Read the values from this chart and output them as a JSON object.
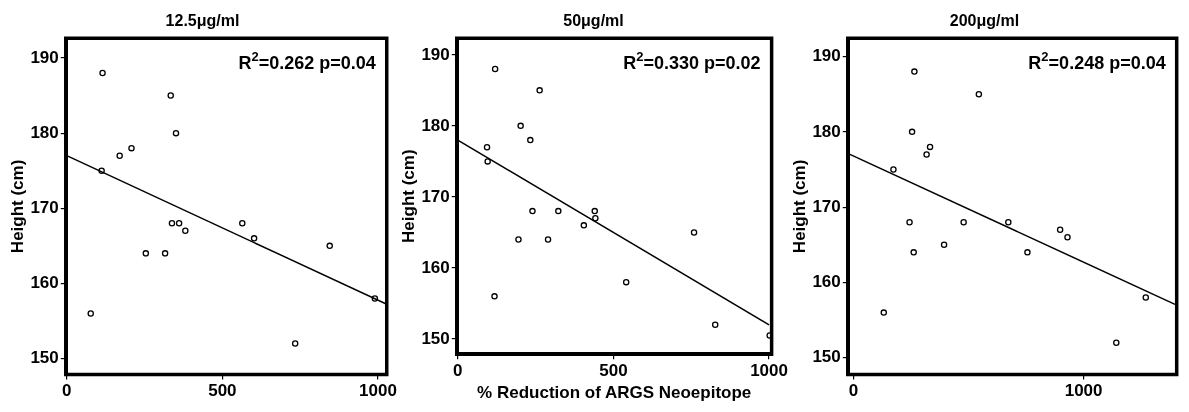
{
  "chart_data": [
    {
      "type": "scatter",
      "title": "12.5μg/ml",
      "ylabel": "Height (cm)",
      "annotations": [
        "R$^{2}$=0.262 p=0.04"
      ],
      "xlim": [
        0,
        1025
      ],
      "xticks": [
        0,
        500,
        1000
      ],
      "ylim": [
        148,
        192.5
      ],
      "yticks": [
        150,
        160,
        170,
        180,
        190
      ],
      "grid": false,
      "legend": false,
      "series": [
        {
          "type": "scatter",
          "marker": "circle",
          "color": "#000000",
          "x": [
            77,
            115,
            112,
            170,
            208,
            254,
            316,
            334,
            351,
            338,
            361,
            381,
            564,
            602,
            845,
            734,
            990
          ],
          "values": [
            156,
            188,
            175,
            177,
            178,
            164,
            164,
            185,
            180,
            168,
            168,
            167,
            168,
            166,
            165,
            152,
            158
          ]
        },
        {
          "type": "line",
          "marker": "none",
          "line_style": "solid",
          "color": "#000000",
          "x": [
            0,
            1025
          ],
          "values": [
            177,
            157.3
          ]
        }
      ]
    },
    {
      "type": "scatter",
      "title": "50μg/ml",
      "xlabel": "% Reduction of ARGS Neoepitope",
      "ylabel": "Height (cm)",
      "annotations": [
        "R$^{2}$=0.330 p=0.02"
      ],
      "xlim": [
        0,
        1005
      ],
      "xticks": [
        0,
        500,
        1000
      ],
      "ylim": [
        148,
        192.2
      ],
      "yticks": [
        150,
        160,
        170,
        180,
        190
      ],
      "grid": false,
      "legend": false,
      "series": [
        {
          "type": "scatter",
          "marker": "circle",
          "color": "#000000",
          "x": [
            120,
            263,
            202,
            233,
            94,
            96,
            240,
            323,
            440,
            442,
            405,
            195,
            290,
            118,
            541,
            759,
            827,
            1002
          ],
          "values": [
            188,
            185,
            180,
            178,
            177,
            175,
            168,
            168,
            168,
            167,
            166,
            164,
            164,
            156,
            158,
            165,
            152,
            150.5
          ]
        },
        {
          "type": "line",
          "marker": "none",
          "line_style": "solid",
          "color": "#000000",
          "x": [
            0,
            1000
          ],
          "values": [
            178,
            152
          ]
        }
      ]
    },
    {
      "type": "scatter",
      "title": "200μg/ml",
      "ylabel": "Height (cm)",
      "annotations": [
        "R$^{2}$=0.248 p=0.04"
      ],
      "xlim": [
        -20,
        1400
      ],
      "xticks": [
        0,
        1000
      ],
      "ylim": [
        147.9,
        192.3
      ],
      "yticks": [
        150,
        160,
        170,
        180,
        190
      ],
      "grid": false,
      "legend": false,
      "series": [
        {
          "type": "scatter",
          "marker": "circle",
          "color": "#000000",
          "x": [
            265,
            545,
            255,
            333,
            318,
            174,
            244,
            479,
            673,
            898,
            930,
            394,
            262,
            756,
            132,
            1270,
            1142
          ],
          "values": [
            188,
            185,
            180,
            178,
            177,
            175,
            168,
            168,
            168,
            167,
            166,
            165,
            164,
            164,
            156,
            158,
            152
          ]
        },
        {
          "type": "line",
          "marker": "none",
          "line_style": "solid",
          "color": "#000000",
          "x": [
            -15,
            1397
          ],
          "values": [
            177,
            157.1
          ]
        }
      ]
    }
  ]
}
